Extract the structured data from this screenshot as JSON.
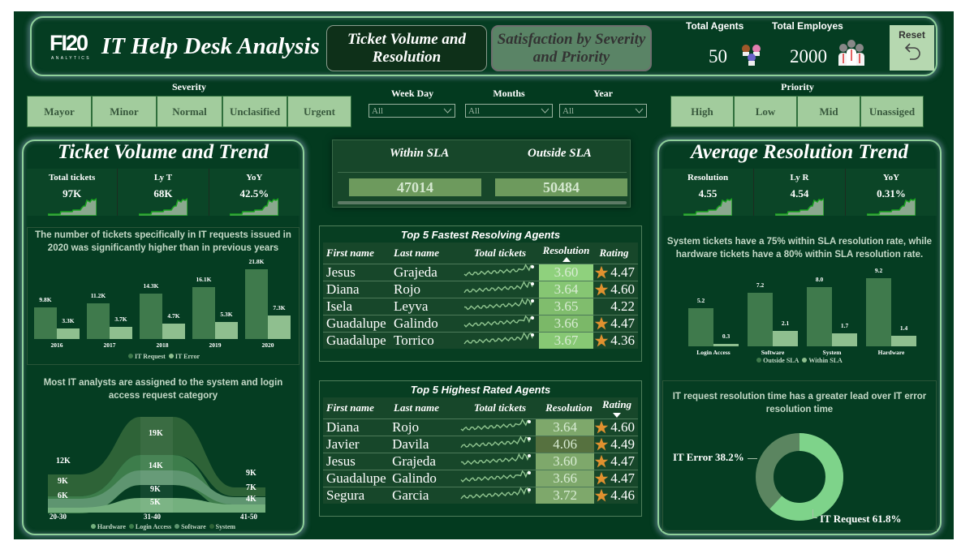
{
  "header": {
    "logo": "FI20",
    "logo_sub": "ANALYTICS",
    "title": "IT Help Desk Analysis",
    "nav": [
      {
        "label": "Ticket Volume and Resolution",
        "active": true
      },
      {
        "label": "Satisfaction by Severity and Priority",
        "active": false
      }
    ],
    "total_agents_label": "Total Agents",
    "total_agents_value": "50",
    "total_employees_label": "Total Employes",
    "total_employees_value": "2000",
    "reset_label": "Reset",
    "icons": {
      "agents": "agents-group-icon",
      "employees": "employees-group-icon",
      "reset": "undo-arrow-icon"
    }
  },
  "filters": {
    "severity": {
      "title": "Severity",
      "options": [
        "Mayor",
        "Minor",
        "Normal",
        "Unclasified",
        "Urgent"
      ]
    },
    "week_day": {
      "title": "Week Day",
      "value": "All"
    },
    "months": {
      "title": "Months",
      "value": "All"
    },
    "year": {
      "title": "Year",
      "value": "All"
    },
    "priority": {
      "title": "Priority",
      "options": [
        "High",
        "Low",
        "Mid",
        "Unassiged"
      ]
    }
  },
  "left_panel": {
    "title": "Ticket Volume and Trend",
    "kpis": [
      {
        "label": "Total tickets",
        "value": "97K"
      },
      {
        "label": "Ly T",
        "value": "68K"
      },
      {
        "label": "YoY",
        "value": "42.5%"
      }
    ],
    "bar_chart_title": "The number of tickets specifically in IT requests issued in 2020 was significantly higher than in previous years",
    "ribbon_chart_title": "Most IT analysts are assigned to the system and login access request category"
  },
  "sla": {
    "within_label": "Within SLA",
    "outside_label": "Outside SLA",
    "within_value": "47014",
    "outside_value": "50484"
  },
  "fastest_agents": {
    "title": "Top 5 Fastest Resolving Agents",
    "columns": [
      "First name",
      "Last name",
      "Total tickets",
      "Resolution",
      "Rating"
    ],
    "sorted_column": "Resolution",
    "sort_dir": "asc",
    "rows": [
      {
        "first": "Jesus",
        "last": "Grajeda",
        "resolution": "3.60",
        "rating": "4.47",
        "star": true
      },
      {
        "first": "Diana",
        "last": "Rojo",
        "resolution": "3.64",
        "rating": "4.60",
        "star": true
      },
      {
        "first": "Isela",
        "last": "Leyva",
        "resolution": "3.65",
        "rating": "4.22",
        "star": false
      },
      {
        "first": "Guadalupe",
        "last": "Galindo",
        "resolution": "3.66",
        "rating": "4.47",
        "star": true
      },
      {
        "first": "Guadalupe",
        "last": "Torrico",
        "resolution": "3.67",
        "rating": "4.36",
        "star": true
      }
    ]
  },
  "highest_rated": {
    "title": "Top 5 Highest Rated Agents",
    "columns": [
      "First name",
      "Last name",
      "Total tickets",
      "Resolution",
      "Rating"
    ],
    "sorted_column": "Rating",
    "sort_dir": "desc",
    "rows": [
      {
        "first": "Diana",
        "last": "Rojo",
        "resolution": "3.64",
        "rating": "4.60",
        "star": true
      },
      {
        "first": "Javier",
        "last": "Davila",
        "resolution": "4.06",
        "rating": "4.49",
        "star": true
      },
      {
        "first": "Jesus",
        "last": "Grajeda",
        "resolution": "3.60",
        "rating": "4.47",
        "star": true
      },
      {
        "first": "Guadalupe",
        "last": "Galindo",
        "resolution": "3.66",
        "rating": "4.47",
        "star": true
      },
      {
        "first": "Segura",
        "last": "Garcia",
        "resolution": "3.72",
        "rating": "4.46",
        "star": true
      }
    ]
  },
  "right_panel": {
    "title": "Average Resolution Trend",
    "kpis": [
      {
        "label": "Resolution",
        "value": "4.55"
      },
      {
        "label": "Ly R",
        "value": "4.54"
      },
      {
        "label": "YoY",
        "value": "0.31%"
      }
    ],
    "bar_chart_title": "System tickets have a 75% within SLA resolution rate, while hardware tickets have a 80% within SLA resolution rate.",
    "donut_title": "IT request resolution time has a greater lead over IT error resolution time"
  },
  "colors": {
    "background": "#033a1f",
    "accent_light": "#a2cc9d",
    "bar_dark": "#3f7a4c",
    "bar_light": "#8fbf8f",
    "donut_request": "#7ed38a",
    "donut_error": "#5b8560",
    "star": "#e0912f"
  },
  "chart_data": [
    {
      "type": "bar",
      "title": "The number of tickets specifically in IT requests issued in 2020 was significantly higher than in previous years",
      "categories": [
        "2016",
        "2017",
        "2018",
        "2019",
        "2020"
      ],
      "series": [
        {
          "name": "IT Request",
          "values": [
            9.8,
            11.2,
            14.3,
            16.1,
            21.8
          ],
          "labels": [
            "9.8K",
            "11.2K",
            "14.3K",
            "16.1K",
            "21.8K"
          ]
        },
        {
          "name": "IT Error",
          "values": [
            3.3,
            3.7,
            4.7,
            5.3,
            7.3
          ],
          "labels": [
            "3.3K",
            "3.7K",
            "4.7K",
            "5.3K",
            "7.3K"
          ]
        }
      ],
      "xlabel": "",
      "ylabel": "Total tickets",
      "legend": "bottom",
      "grid": false
    },
    {
      "type": "area",
      "title": "Most IT analysts are assigned to the system and login access request category",
      "categories": [
        "20-30",
        "31-40",
        "41-50"
      ],
      "series": [
        {
          "name": "Hardware",
          "values": [
            2,
            5,
            4
          ]
        },
        {
          "name": "Software",
          "values": [
            6,
            9,
            4
          ]
        },
        {
          "name": "Login Access",
          "values": [
            9,
            14,
            7
          ]
        },
        {
          "name": "System",
          "values": [
            12,
            19,
            9
          ]
        }
      ],
      "labels": {
        "20-30": [
          "6K",
          "9K",
          "12K"
        ],
        "31-40": [
          "5K",
          "9K",
          "14K",
          "19K"
        ],
        "41-50": [
          "4K",
          "7K",
          "9K"
        ]
      },
      "legend": [
        "Hardware",
        "Login Access",
        "Software",
        "System"
      ],
      "note": "ribbon chart"
    },
    {
      "type": "bar",
      "title": "System tickets have a 75% within SLA resolution rate, while hardware tickets have a 80% within SLA resolution rate.",
      "categories": [
        "Login Access",
        "Software",
        "System",
        "Hardware"
      ],
      "series": [
        {
          "name": "Outside SLA",
          "values": [
            5.2,
            7.2,
            8.0,
            9.2
          ]
        },
        {
          "name": "Within SLA",
          "values": [
            0.3,
            2.1,
            1.7,
            1.4
          ]
        }
      ],
      "xlabel": "",
      "ylabel": "Avg resolution",
      "legend": "bottom",
      "grid": false
    },
    {
      "type": "pie",
      "title": "IT request resolution time has a greater lead over IT error resolution time",
      "categories": [
        "IT Request",
        "IT Error"
      ],
      "values": [
        61.8,
        38.2
      ],
      "labels": [
        "IT Request 61.8%",
        "IT Error 38.2%"
      ],
      "donut": true
    }
  ]
}
